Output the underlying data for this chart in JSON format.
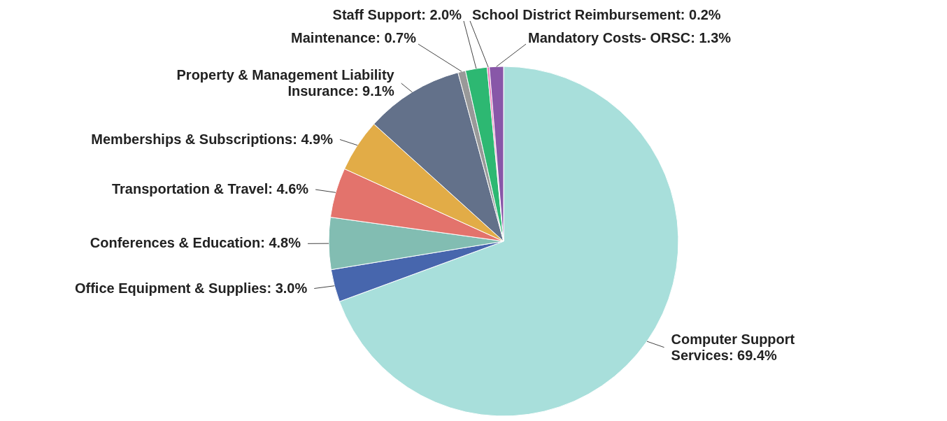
{
  "chart_data": {
    "type": "pie",
    "categories": [
      "Computer Support Services",
      "Office Equipment & Supplies",
      "Conferences & Education",
      "Transportation & Travel",
      "Memberships & Subscriptions",
      "Property & Management Liability Insurance",
      "Maintenance",
      "Staff Support",
      "School District Reimbursement",
      "Mandatory Costs- ORSC"
    ],
    "values": [
      69.4,
      3.0,
      4.8,
      4.6,
      4.9,
      9.1,
      0.7,
      2.0,
      0.2,
      1.3
    ],
    "value_labels": [
      "69.4%",
      "3.0%",
      "4.8%",
      "4.6%",
      "4.9%",
      "9.1%",
      "0.7%",
      "2.0%",
      "0.2%",
      "1.3%"
    ],
    "colors": [
      "#a8dfdb",
      "#4766ad",
      "#82bdb2",
      "#e3736c",
      "#e2ac47",
      "#63718a",
      "#999999",
      "#2db872",
      "#e86fb3",
      "#8857a8"
    ]
  }
}
